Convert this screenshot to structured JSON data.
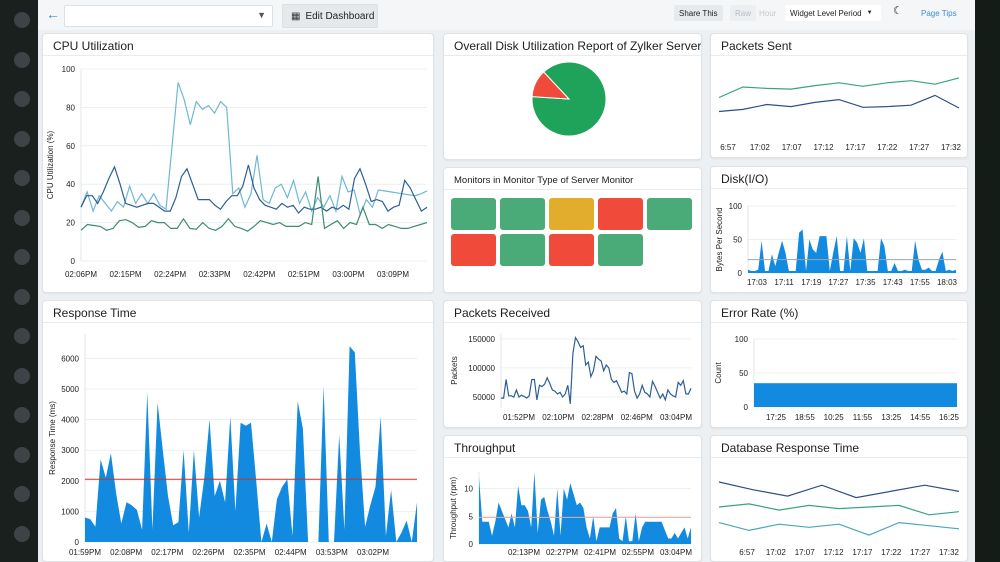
{
  "toolbar": {
    "back_icon": "arrow-left-icon",
    "dashboard_select_value": "",
    "edit_dashboard": "Edit Dashboard",
    "share": "Share This",
    "raw": "Raw",
    "hour": "Hour",
    "period": "Widget Level Period",
    "theme_icon": "moon-icon",
    "page_tips": "Page Tips"
  },
  "colors": {
    "accent": "#2f8ee5",
    "area": "#118ae0",
    "green": "#4aaa78",
    "red": "#f04a3a",
    "yellow": "#e2ac2c",
    "threshold": "#c0392b"
  },
  "widgets": {
    "cpu": "CPU Utilization",
    "disk_report": "Overall Disk Utilization Report of Zylker Server",
    "packets_sent": "Packets Sent",
    "monitors": "Monitors in Monitor Type of Server Monitor",
    "disk_io": "Disk(I/O)",
    "response_time": "Response Time",
    "packets_received": "Packets Received",
    "error_rate": "Error Rate (%)",
    "throughput": "Throughput",
    "db_response": "Database Response Time"
  },
  "monitor_tiles": [
    "green",
    "green",
    "yellow",
    "red",
    "green",
    "red",
    "green",
    "red",
    "green"
  ],
  "chart_data": [
    {
      "id": "cpu",
      "type": "line",
      "ylabel": "CPU Utilization (%)",
      "ylim": [
        0,
        100
      ],
      "yticks": [
        0,
        20,
        40,
        60,
        80,
        100
      ],
      "grid": true,
      "xticks": [
        "02:06PM",
        "02:15PM",
        "02:24PM",
        "02:33PM",
        "02:42PM",
        "02:51PM",
        "03:00PM",
        "03:09PM"
      ],
      "series": [
        {
          "color": "#6fb7d6",
          "values": [
            28,
            36,
            26,
            34,
            30,
            26,
            31,
            28,
            39,
            30,
            35,
            30,
            35,
            29,
            27,
            60,
            93,
            84,
            71,
            83,
            79,
            81,
            77,
            83,
            80,
            35,
            38,
            28,
            35,
            55,
            32,
            30,
            38,
            40,
            33,
            42,
            30,
            36,
            26,
            33,
            28,
            34,
            26,
            44,
            36,
            37,
            24,
            32,
            28,
            37,
            36.5,
            36,
            35.5,
            35,
            34.5,
            34,
            35,
            36.5
          ]
        },
        {
          "color": "#2d5f96",
          "values": [
            28,
            34,
            34,
            30,
            36,
            43,
            49,
            40,
            30,
            29,
            28,
            29,
            30,
            30,
            28,
            26,
            26,
            33,
            44,
            48,
            40,
            32,
            32,
            32,
            29,
            27,
            31,
            34,
            34,
            39,
            50,
            38,
            32,
            29,
            28,
            27,
            30,
            28,
            29,
            25,
            28,
            27,
            27,
            28,
            26,
            28,
            27,
            29,
            27,
            43,
            48,
            40,
            31,
            32,
            31,
            26,
            28,
            29,
            42,
            38,
            32,
            26,
            28
          ]
        },
        {
          "color": "#3d8c6e",
          "values": [
            16,
            19,
            18.5,
            18,
            16,
            17,
            21,
            21.5,
            20,
            17.5,
            18,
            21,
            20,
            20,
            17,
            17,
            22,
            17,
            16.5,
            20,
            17,
            16,
            18,
            22,
            18,
            17,
            15.5,
            18,
            21,
            20,
            19,
            20,
            18,
            18,
            18,
            20,
            19,
            44,
            17,
            19,
            21,
            17,
            20,
            19,
            28,
            19,
            19,
            17,
            19,
            18,
            17,
            17,
            18,
            19,
            20
          ]
        }
      ]
    },
    {
      "id": "disk_report",
      "type": "pie",
      "slices": [
        {
          "color": "#1fa35a",
          "value": 88
        },
        {
          "color": "#f04a3a",
          "value": 12
        }
      ]
    },
    {
      "id": "packets_sent",
      "type": "line",
      "xticks": [
        "6:57",
        "17:02",
        "17:07",
        "17:12",
        "17:17",
        "17:22",
        "17:27",
        "17:32"
      ],
      "ylim": [
        0,
        100
      ],
      "series": [
        {
          "color": "#3aa37e",
          "values": [
            55,
            70,
            68,
            67,
            72,
            76,
            71,
            76,
            79,
            74,
            83
          ]
        },
        {
          "color": "#2d4f86",
          "values": [
            35,
            38,
            45,
            42,
            48,
            52,
            41,
            42,
            44,
            58,
            40
          ]
        }
      ]
    },
    {
      "id": "disk_io",
      "type": "area",
      "ylabel": "Bytes Per Second",
      "ylim": [
        0,
        100
      ],
      "yticks": [
        0,
        50,
        100
      ],
      "threshold": 20,
      "xticks": [
        "17:03",
        "17:11",
        "17:19",
        "17:27",
        "17:35",
        "17:43",
        "17:55",
        "18:03"
      ],
      "series": [
        {
          "color": "#118ae0",
          "values": [
            5,
            3,
            3,
            5,
            48,
            3,
            3,
            28,
            10,
            30,
            48,
            30,
            3,
            3,
            3,
            60,
            65,
            3,
            50,
            35,
            30,
            55,
            55,
            55,
            3,
            30,
            55,
            3,
            3,
            55,
            3,
            52,
            45,
            30,
            52,
            3,
            3,
            3,
            3,
            52,
            40,
            3,
            3,
            15,
            3,
            3,
            5,
            3,
            3,
            48,
            20,
            5,
            5,
            8,
            3,
            3,
            20,
            32,
            3,
            5,
            3,
            5
          ]
        }
      ]
    },
    {
      "id": "response_time",
      "type": "area",
      "ylabel": "Response Time (ms)",
      "ylim": [
        0,
        6800
      ],
      "yticks": [
        0,
        1000,
        2000,
        3000,
        4000,
        5000,
        6000
      ],
      "threshold": 2050,
      "xticks": [
        "01:59PM",
        "02:08PM",
        "02:17PM",
        "02:26PM",
        "02:35PM",
        "02:44PM",
        "03:53PM",
        "03:02PM"
      ],
      "series": [
        {
          "color": "#118ae0",
          "values": [
            800,
            750,
            500,
            2700,
            2100,
            2900,
            1600,
            600,
            1300,
            1200,
            1050,
            400,
            4900,
            400,
            4550,
            3000,
            1500,
            550,
            650,
            3000,
            300,
            3000,
            800,
            2100,
            4000,
            1500,
            2000,
            1300,
            4100,
            1000,
            3900,
            3800,
            3900,
            2000,
            0,
            600,
            0,
            1400,
            1800,
            2050,
            200,
            4600,
            3700,
            0,
            0,
            0,
            5100,
            0,
            0,
            3500,
            400,
            6400,
            6200,
            3000,
            500,
            1200,
            1800,
            4100,
            200,
            1700,
            0,
            300,
            700,
            0,
            1300
          ]
        }
      ]
    },
    {
      "id": "packets_received",
      "type": "line",
      "ylabel": "Packets",
      "ylim": [
        31000,
        160000
      ],
      "yticks": [
        50000,
        100000,
        150000
      ],
      "xticks": [
        "01:52PM",
        "02:10PM",
        "02:28PM",
        "02:46PM",
        "03:04PM"
      ],
      "series": [
        {
          "color": "#2d5f96",
          "values": [
            48000,
            48000,
            80000,
            52000,
            52000,
            50000,
            62000,
            50000,
            53000,
            51000,
            48000,
            52000,
            80000,
            80000,
            45000,
            70000,
            68000,
            72000,
            83000,
            73000,
            62000,
            60000,
            55000,
            58000,
            50000,
            55000,
            70000,
            38000,
            125000,
            152000,
            145000,
            135000,
            138000,
            105000,
            110000,
            85000,
            95000,
            120000,
            115000,
            112000,
            95000,
            105000,
            100000,
            80000,
            75000,
            78000,
            68000,
            58000,
            60000,
            55000,
            92000,
            90000,
            60000,
            48000,
            55000,
            70000,
            58000,
            55000,
            50000,
            77000,
            68000,
            58000,
            48000,
            55000,
            45000,
            62000,
            55000,
            52000,
            50000,
            75000,
            70000,
            78000,
            55000,
            55000,
            65000
          ]
        }
      ]
    },
    {
      "id": "error_rate",
      "type": "bar",
      "ylabel": "Count",
      "ylim": [
        0,
        100
      ],
      "yticks": [
        0,
        50,
        100
      ],
      "xticks": [
        "17:25",
        "18:55",
        "10:25",
        "11:55",
        "13:25",
        "14:55",
        "16:25"
      ],
      "value": 35,
      "color": "#118ae0"
    },
    {
      "id": "throughput",
      "type": "area",
      "ylabel": "Throughput (rpm)",
      "ylim": [
        0,
        13
      ],
      "yticks": [
        0,
        5,
        10
      ],
      "threshold": 4.8,
      "xticks": [
        "02:13PM",
        "02:27PM",
        "02:41PM",
        "02:55PM",
        "03:04PM"
      ],
      "series": [
        {
          "color": "#118ae0",
          "values": [
            12,
            4,
            4,
            4,
            1.5,
            4,
            7.5,
            6,
            4.5,
            3,
            5.5,
            3,
            10.5,
            7,
            7,
            6,
            3,
            13,
            2,
            8,
            8.5,
            6,
            4,
            1.5,
            10,
            1.5,
            10,
            8,
            11,
            9,
            7,
            7.5,
            6.5,
            3,
            1,
            5,
            0.5,
            3,
            3,
            3,
            3,
            5.5,
            6.5,
            1,
            0.5,
            5,
            0.5,
            0.5,
            5.5,
            0.5,
            3,
            4,
            4,
            4,
            4,
            4,
            4,
            2.5,
            1,
            1,
            2,
            1,
            2,
            3,
            1,
            3
          ]
        }
      ]
    },
    {
      "id": "db_response",
      "type": "line",
      "ylim": [
        0,
        100
      ],
      "xticks": [
        "6:57",
        "17:02",
        "17:07",
        "17:12",
        "17:17",
        "17:22",
        "17:27",
        "17:32"
      ],
      "series": [
        {
          "color": "#2d4f86",
          "values": [
            82,
            72,
            64,
            78,
            62,
            70,
            78,
            70
          ]
        },
        {
          "color": "#3aa37e",
          "values": [
            50,
            54,
            46,
            52,
            48,
            50,
            52,
            40,
            44
          ]
        },
        {
          "color": "#4aa8b8",
          "values": [
            30,
            20,
            28,
            24,
            28,
            14,
            30,
            26,
            22
          ]
        }
      ]
    }
  ]
}
